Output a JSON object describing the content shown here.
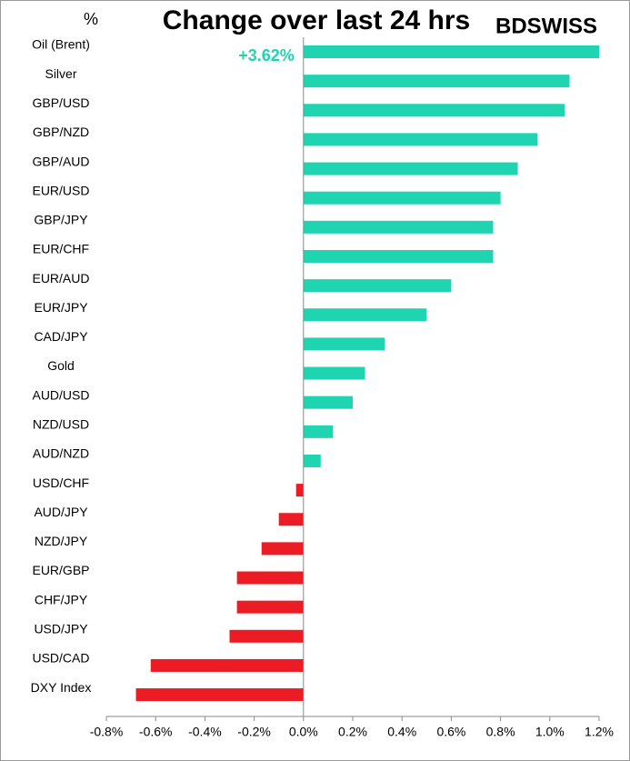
{
  "chart_data": {
    "type": "hbar",
    "title": "Change over last 24 hrs",
    "unit_label": "%",
    "logo": "BDSWISS",
    "categories": [
      "Oil (Brent)",
      "Silver",
      "GBP/USD",
      "GBP/NZD",
      "GBP/AUD",
      "EUR/USD",
      "GBP/JPY",
      "EUR/CHF",
      "EUR/AUD",
      "EUR/JPY",
      "CAD/JPY",
      "Gold",
      "AUD/USD",
      "NZD/USD",
      "AUD/NZD",
      "USD/CHF",
      "AUD/JPY",
      "NZD/JPY",
      "EUR/GBP",
      "CHF/JPY",
      "USD/JPY",
      "USD/CAD",
      "DXY Index"
    ],
    "values": [
      3.62,
      1.08,
      1.06,
      0.95,
      0.87,
      0.8,
      0.77,
      0.77,
      0.6,
      0.5,
      0.33,
      0.25,
      0.2,
      0.12,
      0.07,
      -0.03,
      -0.1,
      -0.17,
      -0.27,
      -0.27,
      -0.3,
      -0.62,
      -0.68
    ],
    "value_labels": [
      "+3.62%",
      null,
      null,
      null,
      null,
      null,
      null,
      null,
      null,
      null,
      null,
      null,
      null,
      null,
      null,
      null,
      null,
      null,
      null,
      null,
      null,
      null,
      null
    ],
    "colors": {
      "positive": "#1fd4b1",
      "negative": "#ec1c24",
      "value_label": "#1fd4b1",
      "logo": "#e3262e"
    },
    "xlim": [
      -0.8,
      1.2
    ],
    "xticks": [
      {
        "value": -0.8,
        "label": "-0.8%"
      },
      {
        "value": -0.6,
        "label": "-0.6%"
      },
      {
        "value": -0.4,
        "label": "-0.4%"
      },
      {
        "value": -0.2,
        "label": "-0.2%"
      },
      {
        "value": 0,
        "label": "0.0%"
      },
      {
        "value": 0.2,
        "label": "0.2%"
      },
      {
        "value": 0.4,
        "label": "0.4%"
      },
      {
        "value": 0.6,
        "label": "0.6%"
      },
      {
        "value": 0.8,
        "label": "0.8%"
      },
      {
        "value": 1.0,
        "label": "1.0%"
      },
      {
        "value": 1.2,
        "label": "1.2%"
      }
    ]
  }
}
